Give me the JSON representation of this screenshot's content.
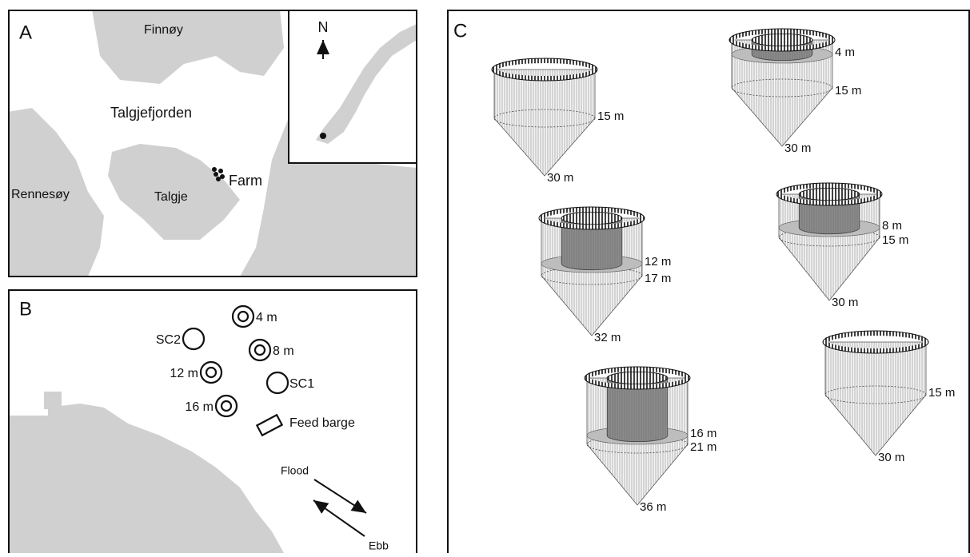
{
  "panel_a": {
    "label": "A",
    "finnoy": "Finnøy",
    "fjord": "Talgjefjorden",
    "rennesoy": "Rennesøy",
    "talgje": "Talgje",
    "farm": "Farm",
    "north": "N"
  },
  "panel_b": {
    "label": "B",
    "sc2": "SC2",
    "cage_4": "4 m",
    "cage_8": "8 m",
    "cage_12": "12 m",
    "sc1": "SC1",
    "cage_16": "16 m",
    "feed_barge": "Feed barge",
    "flood": "Flood",
    "ebb": "Ebb"
  },
  "panel_c": {
    "label": "C",
    "cages": [
      {
        "depths": [
          "15 m",
          "30 m"
        ]
      },
      {
        "depths": [
          "4 m",
          "15 m",
          "30 m"
        ]
      },
      {
        "depths": [
          "12 m",
          "17 m",
          "32 m"
        ]
      },
      {
        "depths": [
          "8 m",
          "15 m",
          "30 m"
        ]
      },
      {
        "depths": [
          "16 m",
          "21 m",
          "36 m"
        ]
      },
      {
        "depths": [
          "15 m",
          "30 m"
        ]
      }
    ]
  }
}
